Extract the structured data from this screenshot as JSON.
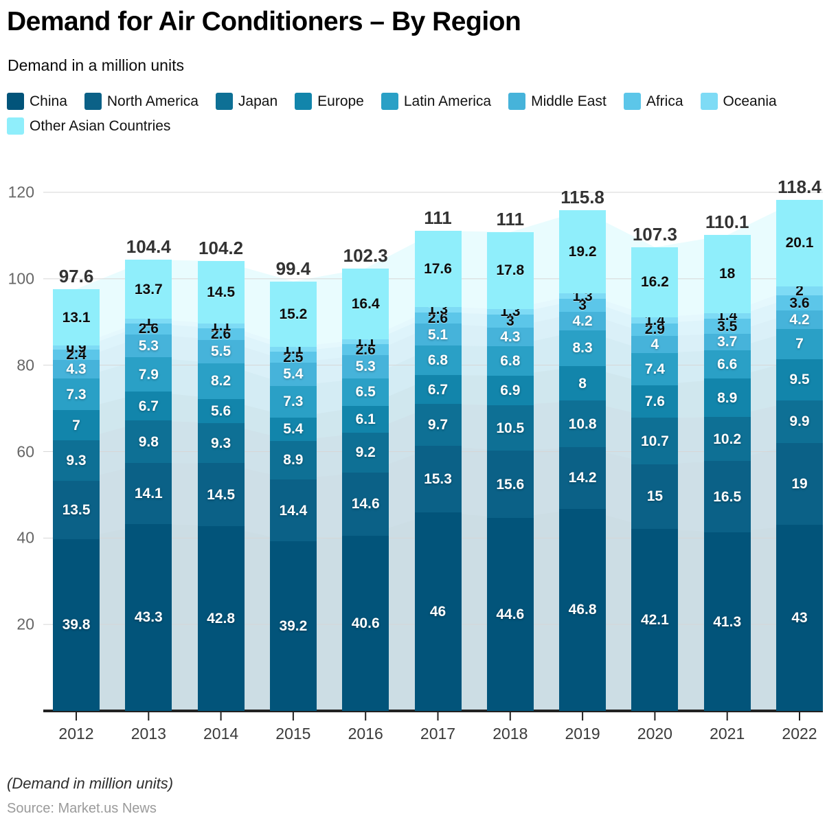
{
  "header": {
    "title": "Demand for Air Conditioners – By Region",
    "subtitle": "Demand in a million units"
  },
  "footer": {
    "note": "(Demand in million units)",
    "source": "Source: Market.us News"
  },
  "chart_data": {
    "type": "bar",
    "variant": "stacked-column",
    "title": "Demand for Air Conditioners – By Region",
    "xlabel": "",
    "ylabel": "Demand in a million units",
    "ylim": [
      0,
      126
    ],
    "y_ticks": [
      20,
      40,
      60,
      80,
      100,
      120
    ],
    "grid": "horizontal",
    "legend_position": "top",
    "categories": [
      "2012",
      "2013",
      "2014",
      "2015",
      "2016",
      "2017",
      "2018",
      "2019",
      "2020",
      "2021",
      "2022"
    ],
    "series": [
      {
        "name": "China",
        "color": "#02547a",
        "text": "light",
        "values": [
          39.8,
          43.3,
          42.8,
          39.2,
          40.6,
          46,
          44.6,
          46.8,
          42.1,
          41.3,
          43
        ]
      },
      {
        "name": "North America",
        "color": "#0b6187",
        "text": "light",
        "values": [
          13.5,
          14.1,
          14.5,
          14.4,
          14.6,
          15.3,
          15.6,
          14.2,
          15,
          16.5,
          19
        ]
      },
      {
        "name": "Japan",
        "color": "#0e7095",
        "text": "light",
        "values": [
          9.3,
          9.8,
          9.3,
          8.9,
          9.2,
          9.7,
          10.5,
          10.8,
          10.7,
          10.2,
          9.9
        ]
      },
      {
        "name": "Europe",
        "color": "#1285ab",
        "text": "light",
        "values": [
          7,
          6.7,
          5.6,
          5.4,
          6.1,
          6.7,
          6.9,
          8,
          7.6,
          8.9,
          9.5
        ]
      },
      {
        "name": "Latin America",
        "color": "#2aa0c6",
        "text": "light",
        "values": [
          7.3,
          7.9,
          8.2,
          7.3,
          6.5,
          6.8,
          6.8,
          8.3,
          7.4,
          6.6,
          7
        ]
      },
      {
        "name": "Middle East",
        "color": "#46b3da",
        "text": "light",
        "values": [
          4.3,
          5.3,
          5.5,
          5.4,
          5.3,
          5.1,
          4.3,
          4.2,
          4,
          3.7,
          4.2
        ]
      },
      {
        "name": "Africa",
        "color": "#5cc6e9",
        "text": "dark",
        "values": [
          2.4,
          2.6,
          2.6,
          2.5,
          2.6,
          2.6,
          3,
          3,
          2.9,
          3.5,
          3.6
        ]
      },
      {
        "name": "Oceania",
        "color": "#7edbf5",
        "text": "dark",
        "values": [
          0.9,
          1,
          1.1,
          1.1,
          1.1,
          1.3,
          1.3,
          1.3,
          1.4,
          1.4,
          2
        ]
      },
      {
        "name": "Other Asian Countries",
        "color": "#8feefb",
        "text": "dark",
        "values": [
          13.1,
          13.7,
          14.5,
          15.2,
          16.4,
          17.6,
          17.8,
          19.2,
          16.2,
          18,
          20.1
        ]
      }
    ],
    "totals": [
      "97.6",
      "104.4",
      "104.2",
      "99.4",
      "102.3",
      "111",
      "111",
      "115.8",
      "107.3",
      "110.1",
      "118.4"
    ],
    "style": {
      "grid_color": "#d6d6d6",
      "axis_color": "#222222",
      "total_label_color": "#333333",
      "tick_label_color": "#666666"
    }
  }
}
